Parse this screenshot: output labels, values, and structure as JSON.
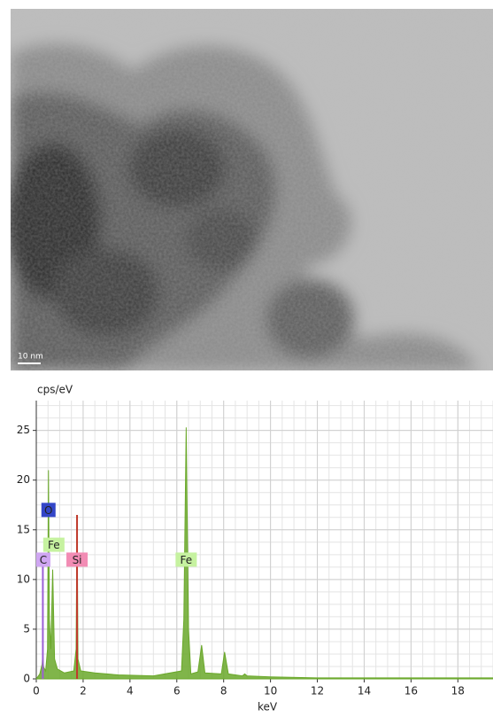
{
  "image": {
    "scale_bar_label": "10 nm"
  },
  "chart_data": {
    "type": "area",
    "y_label": "cps/eV",
    "x_label": "keV",
    "x": [
      0,
      0.15,
      0.25,
      0.28,
      0.31,
      0.4,
      0.48,
      0.52,
      0.56,
      0.62,
      0.7,
      0.78,
      0.9,
      1.2,
      1.6,
      1.7,
      1.74,
      1.78,
      1.9,
      2.5,
      3.5,
      5,
      6.2,
      6.3,
      6.4,
      6.5,
      6.6,
      6.9,
      7.06,
      7.2,
      7.9,
      8.04,
      8.2,
      8.8,
      8.9,
      9.0,
      10,
      12,
      14,
      16,
      18,
      19.5
    ],
    "series": [
      {
        "color": "#6aa82a",
        "values": [
          0,
          0.5,
          1.5,
          2.5,
          1.2,
          0.8,
          3,
          21,
          6,
          3,
          11,
          2,
          1,
          0.6,
          0.8,
          3,
          16.5,
          2,
          0.8,
          0.6,
          0.4,
          0.3,
          0.8,
          6,
          25.3,
          5,
          0.5,
          0.7,
          3.4,
          0.6,
          0.5,
          2.7,
          0.5,
          0.3,
          0.5,
          0.3,
          0.2,
          0.1,
          0.1,
          0.1,
          0.1,
          0.1
        ]
      }
    ],
    "element_lines": [
      {
        "x": 0.28,
        "y": 12,
        "color": "#9b5fd6"
      },
      {
        "x": 1.74,
        "y": 16.5,
        "color": "#c0392b"
      }
    ],
    "annotations": [
      {
        "text": "O",
        "x": 0.52,
        "y": 17,
        "color": "#3346c8"
      },
      {
        "text": "Fe",
        "x": 0.75,
        "y": 13.5,
        "color": "#c6f2a0"
      },
      {
        "text": "C",
        "x": 0.3,
        "y": 12,
        "color": "#cfa6f2"
      },
      {
        "text": "Si",
        "x": 1.74,
        "y": 12,
        "color": "#f28cb4"
      },
      {
        "text": "Fe",
        "x": 6.4,
        "y": 12,
        "color": "#c6f2a0"
      }
    ],
    "xlim": [
      0,
      19.5
    ],
    "ylim": [
      0,
      28
    ],
    "xticks": [
      0,
      2,
      4,
      6,
      8,
      10,
      12,
      14,
      16,
      18
    ],
    "yticks": [
      0,
      5,
      10,
      15,
      20,
      25
    ],
    "grid": true
  }
}
